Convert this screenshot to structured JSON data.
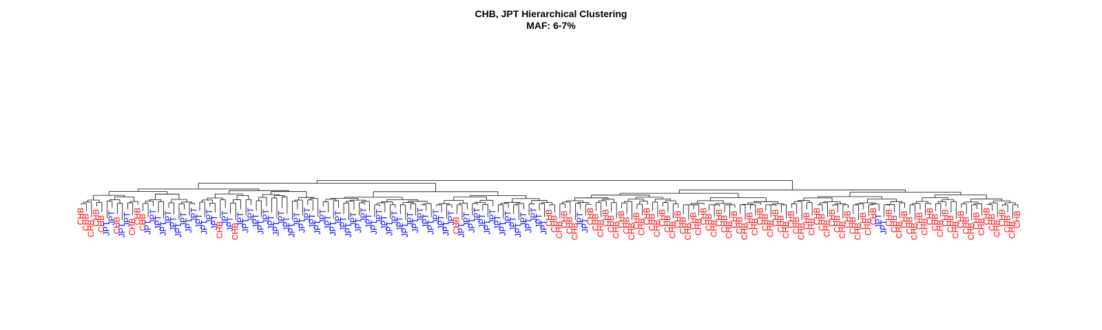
{
  "title": {
    "line1": "CHB, JPT Hierarchical Clustering",
    "line2": "MAF: 6-7%"
  },
  "colors": {
    "CHB": "#ff0000",
    "JPT": "#0000ff",
    "tree": "#000000"
  },
  "leaves": [
    "CHB",
    "CHB",
    "CHB",
    "CHB",
    "CHB",
    "JPT",
    "JPT",
    "CHB",
    "JPT",
    "JPT",
    "CHB",
    "CHB",
    "CHB",
    "JPT",
    "JPT",
    "JPT",
    "JPT",
    "JPT",
    "JPT",
    "JPT",
    "JPT",
    "JPT",
    "JPT",
    "JPT",
    "JPT",
    "JPT",
    "JPT",
    "CHB",
    "JPT",
    "JPT",
    "CHB",
    "JPT",
    "JPT",
    "JPT",
    "JPT",
    "JPT",
    "JPT",
    "JPT",
    "JPT",
    "JPT",
    "JPT",
    "JPT",
    "JPT",
    "JPT",
    "JPT",
    "JPT",
    "JPT",
    "JPT",
    "JPT",
    "JPT",
    "JPT",
    "JPT",
    "JPT",
    "JPT",
    "JPT",
    "JPT",
    "JPT",
    "JPT",
    "JPT",
    "JPT",
    "JPT",
    "JPT",
    "JPT",
    "JPT",
    "JPT",
    "JPT",
    "JPT",
    "JPT",
    "JPT",
    "JPT",
    "JPT",
    "JPT",
    "JPT",
    "CHB",
    "JPT",
    "JPT",
    "JPT",
    "JPT",
    "JPT",
    "JPT",
    "JPT",
    "JPT",
    "JPT",
    "JPT",
    "JPT",
    "JPT",
    "JPT",
    "JPT",
    "JPT",
    "JPT",
    "JPT",
    "CHB",
    "CHB",
    "CHB",
    "CHB",
    "CHB",
    "CHB",
    "JPT",
    "JPT",
    "CHB",
    "CHB",
    "CHB",
    "CHB",
    "CHB",
    "CHB",
    "CHB",
    "CHB",
    "CHB",
    "CHB",
    "CHB",
    "CHB",
    "CHB",
    "CHB",
    "CHB",
    "CHB",
    "CHB",
    "CHB",
    "CHB",
    "CHB",
    "CHB",
    "CHB",
    "CHB",
    "CHB",
    "CHB",
    "CHB",
    "CHB",
    "CHB",
    "CHB",
    "CHB",
    "CHB",
    "CHB",
    "CHB",
    "CHB",
    "CHB",
    "CHB",
    "CHB",
    "CHB",
    "CHB",
    "CHB",
    "CHB",
    "CHB",
    "CHB",
    "CHB",
    "CHB",
    "CHB",
    "CHB",
    "CHB",
    "CHB",
    "CHB",
    "CHB",
    "CHB",
    "CHB",
    "CHB",
    "CHB",
    "CHB",
    "JPT",
    "JPT",
    "CHB",
    "CHB",
    "CHB",
    "CHB",
    "CHB",
    "CHB",
    "CHB",
    "CHB",
    "CHB",
    "CHB",
    "CHB",
    "CHB",
    "CHB",
    "CHB",
    "CHB",
    "CHB",
    "CHB",
    "CHB",
    "CHB",
    "CHB",
    "CHB",
    "CHB",
    "CHB",
    "CHB",
    "CHB",
    "CHB"
  ]
}
